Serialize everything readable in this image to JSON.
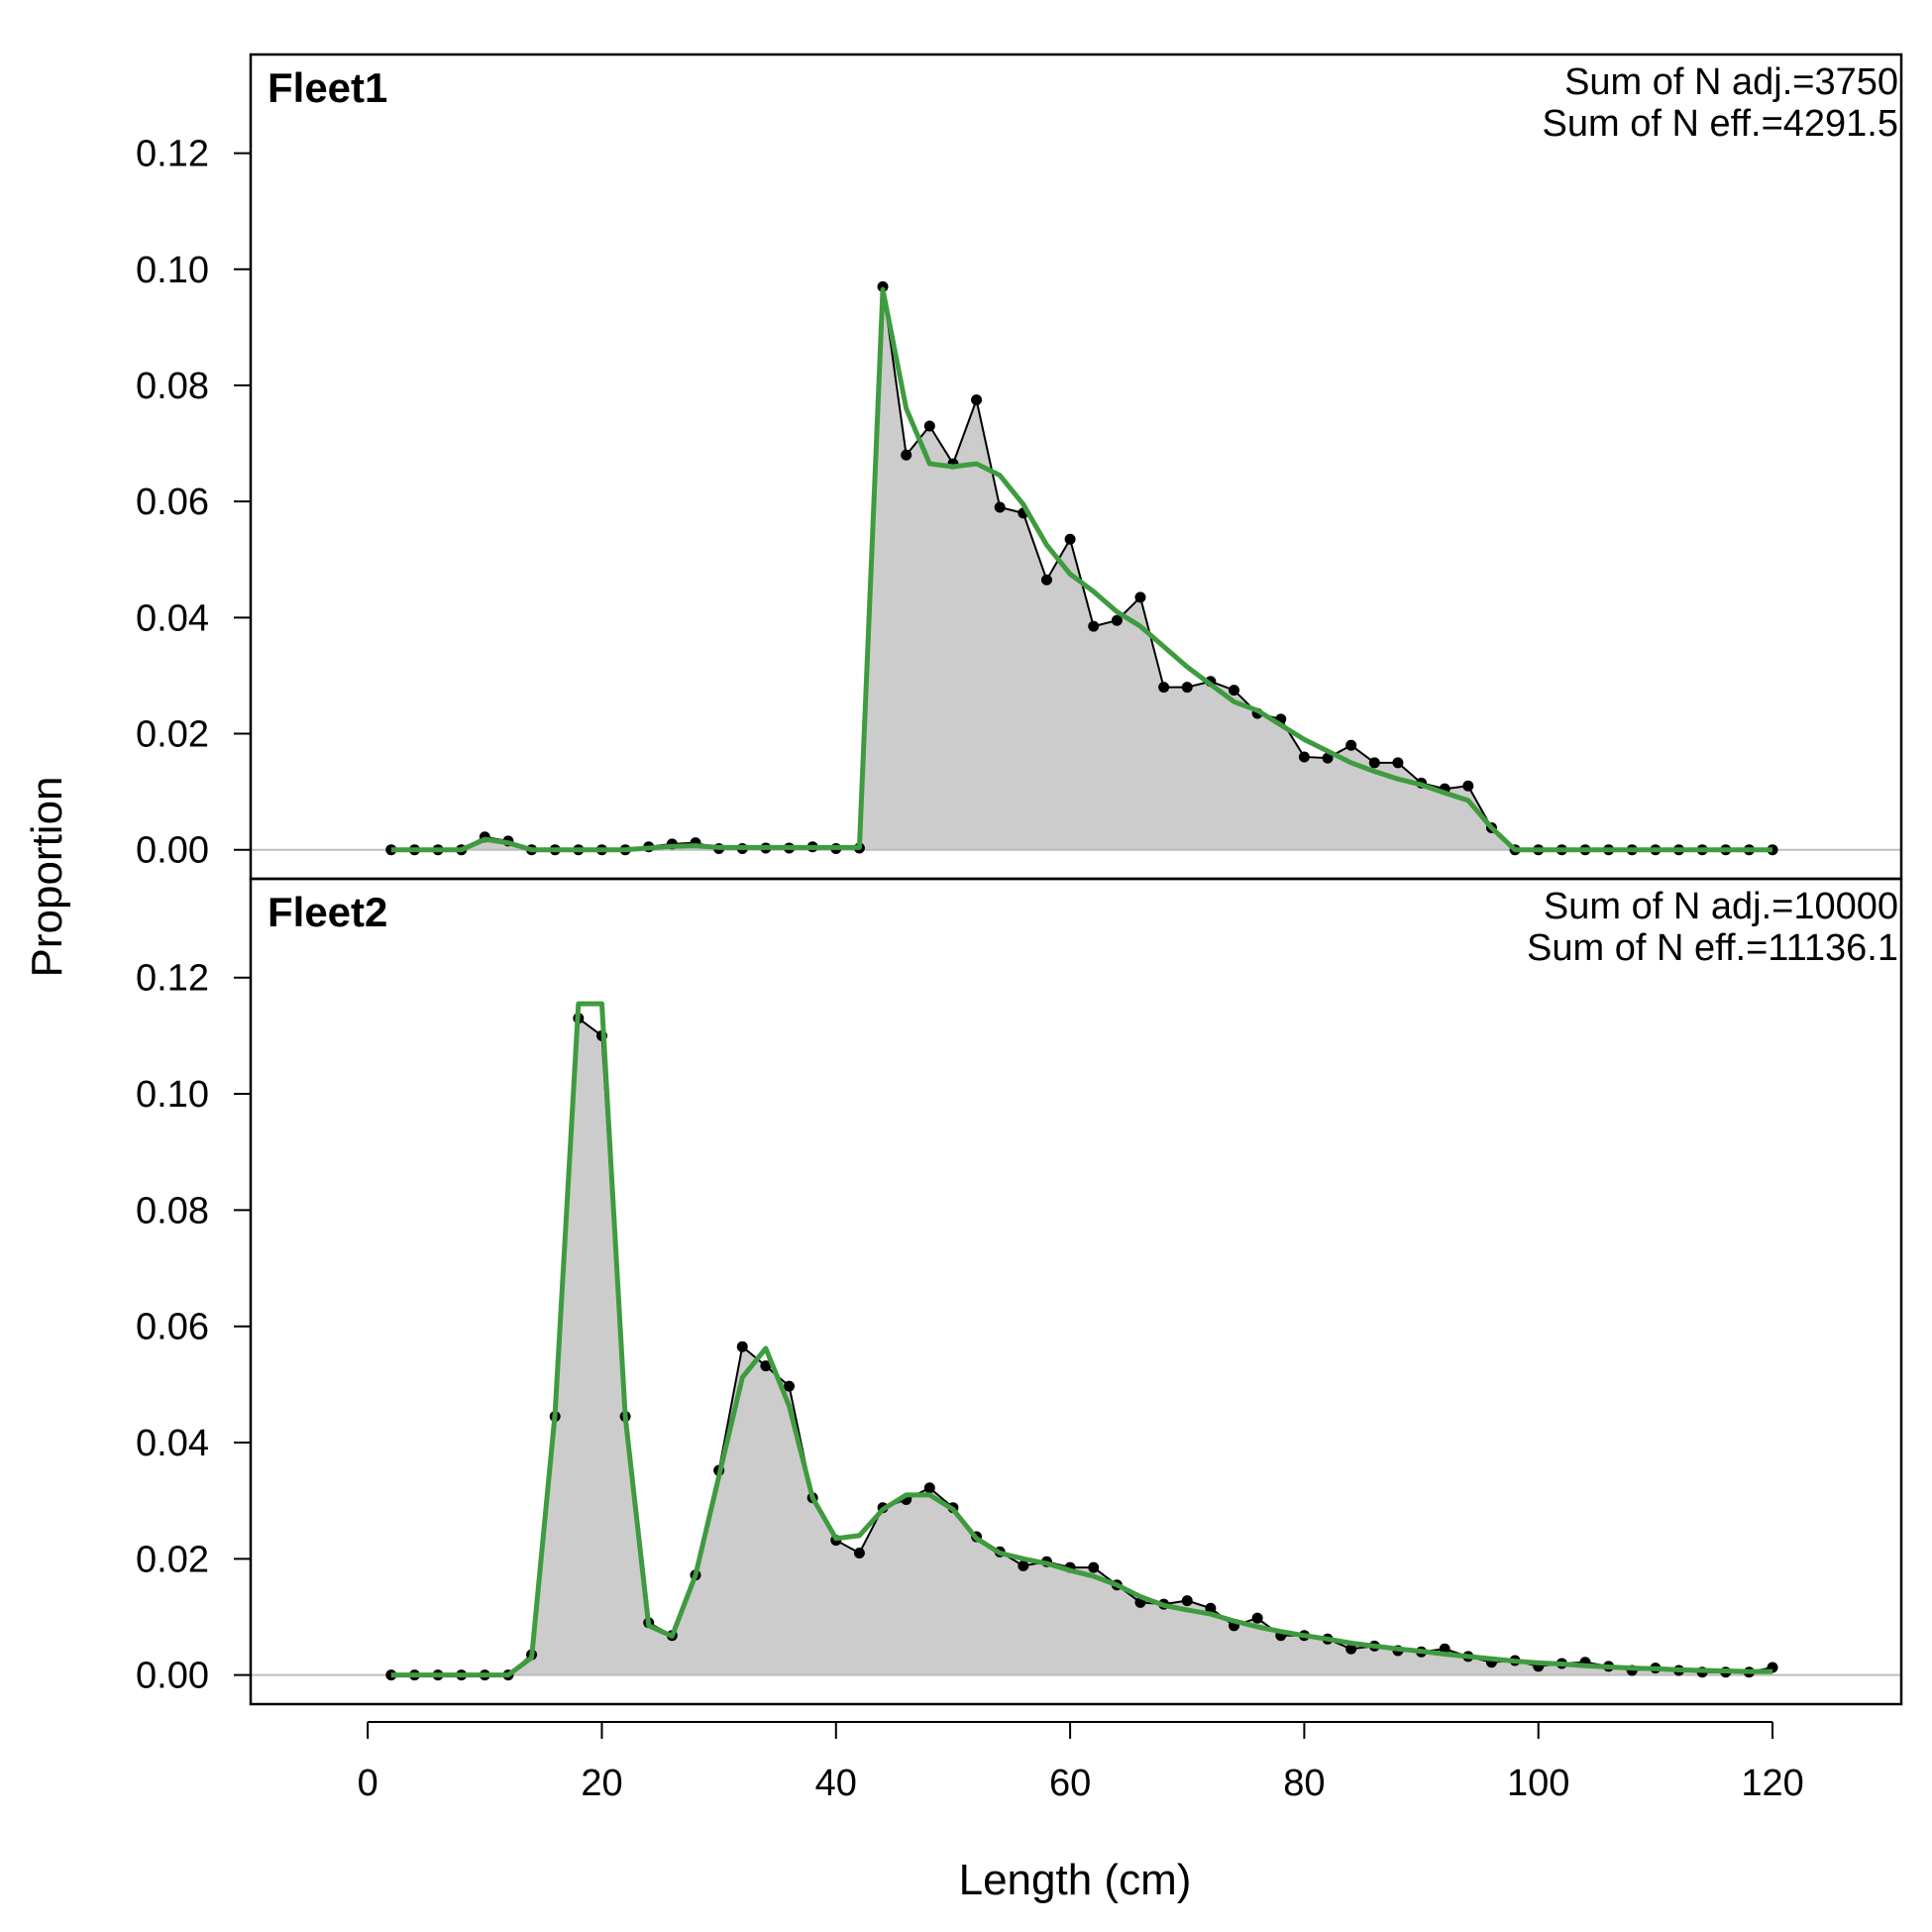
{
  "chart_data": {
    "type": "area",
    "xlabel": "Length (cm)",
    "ylabel": "Proportion",
    "xlim": [
      -10,
      131
    ],
    "ylim": [
      -0.005,
      0.137
    ],
    "xticks": [
      0,
      20,
      40,
      60,
      80,
      100,
      120
    ],
    "xtick_labels": [
      "0",
      "20",
      "40",
      "60",
      "80",
      "100",
      "120"
    ],
    "yticks": [
      0.0,
      0.02,
      0.04,
      0.06,
      0.08,
      0.1,
      0.12
    ],
    "ytick_labels": [
      "0.00",
      "0.02",
      "0.04",
      "0.06",
      "0.08",
      "0.10",
      "0.12"
    ],
    "grid": false,
    "colors": {
      "observed_fill": "#cccccc",
      "observed_line": "#000000",
      "expected_line": "#3f9b3f",
      "zero_line": "#bdbdbd"
    },
    "x": [
      2,
      4,
      6,
      8,
      10,
      12,
      14,
      16,
      18,
      20,
      22,
      24,
      26,
      28,
      30,
      32,
      34,
      36,
      38,
      40,
      42,
      44,
      46,
      48,
      50,
      52,
      54,
      56,
      58,
      60,
      62,
      64,
      66,
      68,
      70,
      72,
      74,
      76,
      78,
      80,
      82,
      84,
      86,
      88,
      90,
      92,
      94,
      96,
      98,
      100,
      102,
      104,
      106,
      108,
      110,
      112,
      114,
      116,
      118,
      120
    ],
    "panels": [
      {
        "title": "Fleet1",
        "notes": [
          "Sum of N adj.=3750",
          "Sum of N eff.=4291.5"
        ],
        "observed": [
          0,
          0,
          0,
          0,
          0.0022,
          0.0015,
          0,
          0,
          0,
          0,
          0,
          0.0005,
          0.001,
          0.0012,
          0.0002,
          0.0002,
          0.0003,
          0.0003,
          0.0005,
          0.0002,
          0.0003,
          0.097,
          0.068,
          0.073,
          0.0665,
          0.0775,
          0.059,
          0.058,
          0.0465,
          0.0535,
          0.0385,
          0.0395,
          0.0435,
          0.028,
          0.028,
          0.029,
          0.0275,
          0.0235,
          0.0225,
          0.016,
          0.0158,
          0.018,
          0.015,
          0.015,
          0.0115,
          0.0105,
          0.011,
          0.0038,
          0,
          0,
          0,
          0,
          0,
          0,
          0,
          0,
          0,
          0,
          0,
          0
        ],
        "expected": [
          0,
          0,
          0,
          0,
          0.0018,
          0.0012,
          0,
          0,
          0,
          0,
          0,
          0.0003,
          0.0006,
          0.0007,
          0.0004,
          0.0004,
          0.0004,
          0.0004,
          0.0004,
          0.0004,
          0.0004,
          0.0965,
          0.076,
          0.0665,
          0.066,
          0.0665,
          0.0645,
          0.0595,
          0.0525,
          0.0475,
          0.0445,
          0.041,
          0.0385,
          0.035,
          0.0315,
          0.0285,
          0.0255,
          0.024,
          0.0215,
          0.019,
          0.017,
          0.015,
          0.0135,
          0.0122,
          0.0112,
          0.0098,
          0.0085,
          0.0038,
          0,
          0,
          0,
          0,
          0,
          0,
          0,
          0,
          0,
          0,
          0,
          0
        ]
      },
      {
        "title": "Fleet2",
        "notes": [
          "Sum of N adj.=10000",
          "Sum of N eff.=11136.1"
        ],
        "observed": [
          0,
          0,
          0,
          0,
          0,
          0,
          0.0035,
          0.0445,
          0.113,
          0.11,
          0.0445,
          0.009,
          0.0068,
          0.0172,
          0.0352,
          0.0565,
          0.0532,
          0.0497,
          0.0305,
          0.0232,
          0.021,
          0.0288,
          0.0302,
          0.0322,
          0.0288,
          0.0238,
          0.0212,
          0.0188,
          0.0195,
          0.0185,
          0.0185,
          0.0155,
          0.0125,
          0.0122,
          0.0128,
          0.0115,
          0.0085,
          0.0098,
          0.0068,
          0.0068,
          0.0062,
          0.0045,
          0.005,
          0.0042,
          0.004,
          0.0045,
          0.0032,
          0.0022,
          0.0025,
          0.0015,
          0.002,
          0.0022,
          0.0015,
          0.0008,
          0.0012,
          0.0008,
          0.0005,
          0.0005,
          0.0005,
          0.0013
        ],
        "expected": [
          0,
          0,
          0,
          0,
          0,
          0,
          0.003,
          0.045,
          0.1155,
          0.1155,
          0.0445,
          0.0085,
          0.0067,
          0.0172,
          0.0342,
          0.0512,
          0.0562,
          0.0463,
          0.0305,
          0.0235,
          0.024,
          0.0285,
          0.031,
          0.031,
          0.0285,
          0.0235,
          0.021,
          0.02,
          0.0192,
          0.018,
          0.017,
          0.0155,
          0.0135,
          0.012,
          0.0112,
          0.0105,
          0.0093,
          0.0083,
          0.0075,
          0.0068,
          0.0062,
          0.0055,
          0.005,
          0.0045,
          0.0041,
          0.0036,
          0.0032,
          0.0028,
          0.0024,
          0.0021,
          0.0019,
          0.0016,
          0.0014,
          0.0012,
          0.0011,
          0.0009,
          0.0008,
          0.0007,
          0.0006,
          0.0006
        ]
      }
    ]
  }
}
